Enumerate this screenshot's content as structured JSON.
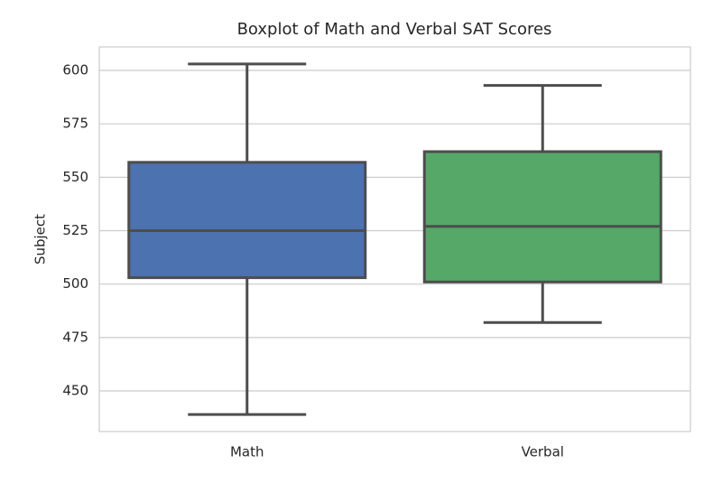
{
  "chart_data": {
    "type": "box",
    "title": "Boxplot of Math and Verbal SAT Scores",
    "y_label": "Subject",
    "categories": [
      "Math",
      "Verbal"
    ],
    "boxes": [
      {
        "whislo": 439,
        "q1": 503,
        "med": 525,
        "q3": 557,
        "whishi": 603,
        "color": "#4c72b0"
      },
      {
        "whislo": 482,
        "q1": 501,
        "med": 527,
        "q3": 562,
        "whishi": 593,
        "color": "#55a868"
      }
    ],
    "ylim": [
      431,
      611
    ],
    "yticks": [
      450,
      475,
      500,
      525,
      550,
      575,
      600
    ],
    "grid": true
  }
}
